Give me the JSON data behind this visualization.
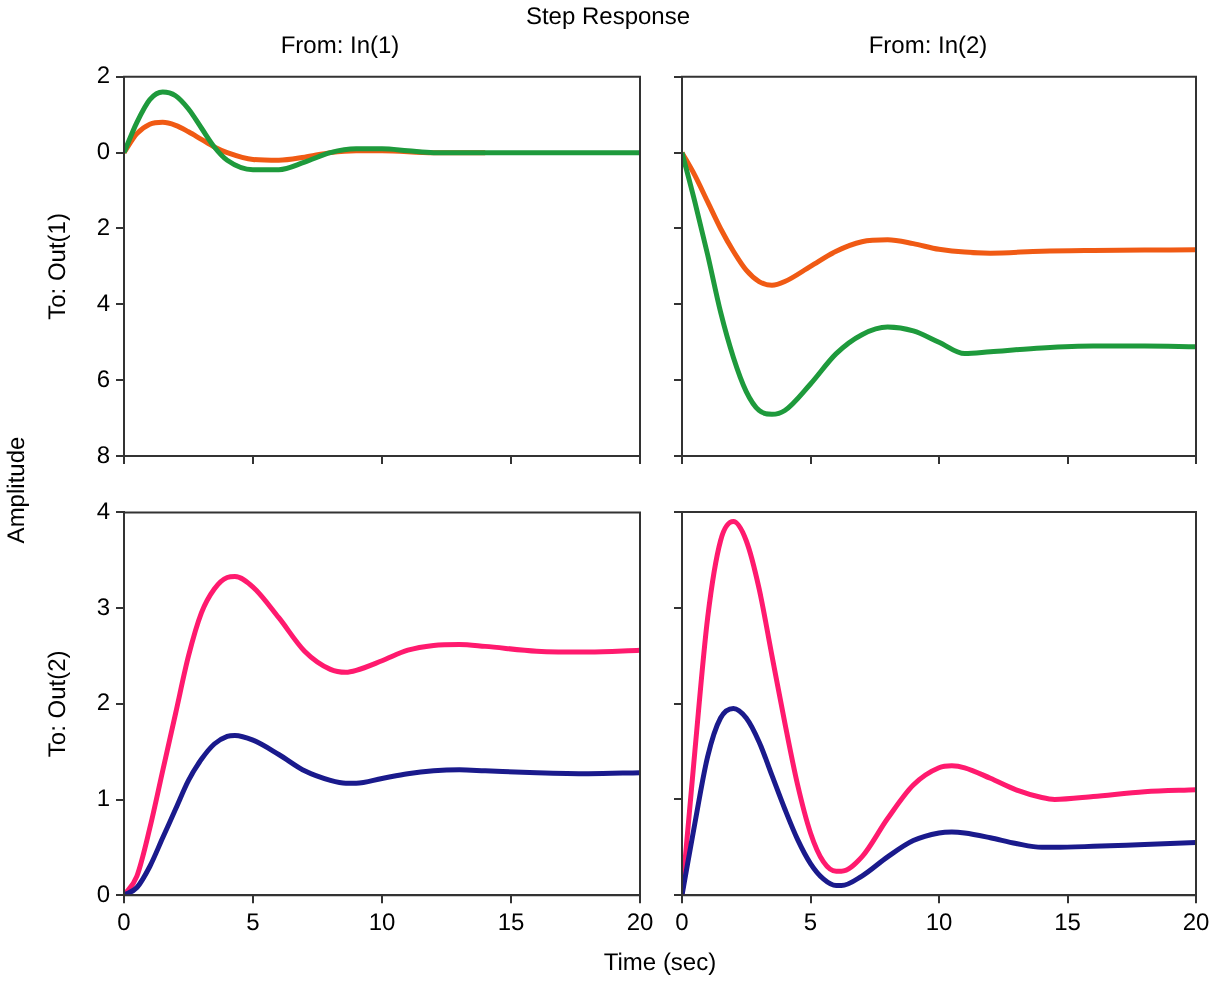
{
  "chart_data": [
    {
      "type": "line",
      "title": "From: In(1)",
      "ylabel": "To: Out(1)",
      "annotations": [
        "Step Response",
        "Amplitude",
        "Time (sec)"
      ],
      "tick_labels": "y",
      "xlim": [
        0,
        20
      ],
      "xticks": [
        {
          "value": 0,
          "label": null
        },
        {
          "value": 5,
          "label": null
        },
        {
          "value": 10,
          "label": null
        },
        {
          "value": 15,
          "label": null
        },
        {
          "value": 20,
          "label": null
        }
      ],
      "ylim": [
        -8,
        2
      ],
      "yticks": [
        {
          "value": -8,
          "label": "8"
        },
        {
          "value": -6,
          "label": "6"
        },
        {
          "value": -4,
          "label": "4"
        },
        {
          "value": -2,
          "label": "2"
        },
        0,
        2
      ],
      "series": [
        {
          "color": "#f05a14",
          "x": [
            0,
            0.5,
            1,
            1.5,
            2,
            2.5,
            3,
            3.5,
            4,
            5,
            6,
            7,
            8,
            9,
            10,
            12,
            14
          ],
          "values": [
            0,
            0.5,
            0.75,
            0.8,
            0.72,
            0.55,
            0.35,
            0.15,
            0,
            -0.18,
            -0.2,
            -0.12,
            0,
            0.05,
            0.05,
            0,
            0
          ]
        },
        {
          "color": "#1e9a3c",
          "x": [
            0,
            0.5,
            1,
            1.5,
            2,
            2.5,
            3,
            3.5,
            4,
            5,
            6,
            7,
            8,
            9,
            10,
            11,
            12,
            14,
            16,
            18,
            20
          ],
          "values": [
            0,
            0.8,
            1.4,
            1.6,
            1.5,
            1.15,
            0.65,
            0.15,
            -0.2,
            -0.45,
            -0.45,
            -0.25,
            0,
            0.1,
            0.1,
            0.05,
            0,
            0,
            0,
            0,
            0
          ]
        }
      ]
    },
    {
      "type": "line",
      "title": "From: In(2)",
      "tick_labels": false,
      "xlim": [
        0,
        20
      ],
      "xticks": [
        {
          "value": 0,
          "label": null
        },
        {
          "value": 5,
          "label": null
        },
        {
          "value": 10,
          "label": null
        },
        {
          "value": 15,
          "label": null
        },
        {
          "value": 20,
          "label": null
        }
      ],
      "ylim": [
        -8,
        2
      ],
      "yticks": [
        {
          "value": -8,
          "label": null
        },
        {
          "value": -6,
          "label": null
        },
        {
          "value": -4,
          "label": null
        },
        {
          "value": -2,
          "label": null
        },
        {
          "value": 0,
          "label": null
        },
        {
          "value": 2,
          "label": null
        }
      ],
      "series": [
        {
          "color": "#f05a14",
          "x": [
            0,
            0.5,
            1,
            1.5,
            2,
            2.5,
            3,
            3.5,
            4,
            5,
            6,
            7,
            8,
            9,
            10,
            12,
            14,
            16,
            18,
            20
          ],
          "values": [
            0,
            -0.6,
            -1.3,
            -2,
            -2.6,
            -3.1,
            -3.4,
            -3.5,
            -3.4,
            -3,
            -2.6,
            -2.35,
            -2.3,
            -2.4,
            -2.55,
            -2.65,
            -2.6,
            -2.58,
            -2.57,
            -2.56
          ]
        },
        {
          "color": "#1e9a3c",
          "x": [
            0,
            0.5,
            1,
            1.5,
            2,
            2.5,
            3,
            3.5,
            4,
            5,
            6,
            7,
            8,
            9,
            10,
            11,
            12,
            14,
            16,
            18,
            20
          ],
          "values": [
            0,
            -1.3,
            -2.7,
            -4.2,
            -5.4,
            -6.3,
            -6.8,
            -6.9,
            -6.8,
            -6.1,
            -5.3,
            -4.8,
            -4.6,
            -4.7,
            -5,
            -5.3,
            -5.25,
            -5.15,
            -5.1,
            -5.1,
            -5.12
          ]
        }
      ]
    },
    {
      "type": "line",
      "ylabel": "To: Out(2)",
      "xlim": [
        0,
        20
      ],
      "xticks": [
        0,
        5,
        10,
        15,
        20
      ],
      "ylim": [
        0,
        4
      ],
      "yticks": [
        0,
        1,
        2,
        3,
        4
      ],
      "series": [
        {
          "color": "#ff1a6e",
          "x": [
            0,
            0.5,
            1,
            1.5,
            2,
            2.5,
            3,
            3.5,
            4,
            4.3,
            5,
            6,
            7,
            8,
            8.6,
            9,
            10,
            11,
            12,
            13,
            14,
            16,
            18,
            20
          ],
          "values": [
            0,
            0.2,
            0.7,
            1.3,
            1.9,
            2.5,
            2.95,
            3.2,
            3.32,
            3.33,
            3.22,
            2.9,
            2.55,
            2.36,
            2.33,
            2.35,
            2.45,
            2.56,
            2.61,
            2.62,
            2.6,
            2.55,
            2.54,
            2.56
          ]
        },
        {
          "color": "#1a1a8c",
          "x": [
            0,
            0.5,
            1,
            1.5,
            2,
            2.5,
            3,
            3.5,
            4,
            4.3,
            5,
            6,
            7,
            8,
            8.6,
            9,
            10,
            11,
            12,
            13,
            14,
            16,
            18,
            20
          ],
          "values": [
            0,
            0.08,
            0.3,
            0.6,
            0.9,
            1.2,
            1.42,
            1.58,
            1.66,
            1.67,
            1.62,
            1.47,
            1.3,
            1.2,
            1.17,
            1.17,
            1.22,
            1.27,
            1.3,
            1.31,
            1.3,
            1.28,
            1.27,
            1.28
          ]
        }
      ]
    },
    {
      "type": "line",
      "tick_labels": "x",
      "xlim": [
        0,
        20
      ],
      "xticks": [
        0,
        5,
        10,
        15,
        20
      ],
      "ylim": [
        0,
        4
      ],
      "yticks": [
        {
          "value": 0,
          "label": null
        },
        {
          "value": 1,
          "label": null
        },
        {
          "value": 2,
          "label": null
        },
        {
          "value": 3,
          "label": null
        },
        {
          "value": 4,
          "label": null
        }
      ],
      "series": [
        {
          "color": "#ff1a6e",
          "x": [
            0,
            0.5,
            1,
            1.5,
            2,
            2.5,
            3,
            3.5,
            4,
            4.5,
            5,
            5.5,
            6,
            6.2,
            7,
            8,
            9,
            10,
            10.5,
            11,
            12,
            13,
            14,
            14.5,
            16,
            18,
            20
          ],
          "values": [
            0,
            1.5,
            2.9,
            3.7,
            3.9,
            3.7,
            3.2,
            2.5,
            1.8,
            1.15,
            0.65,
            0.35,
            0.25,
            0.25,
            0.4,
            0.8,
            1.15,
            1.33,
            1.35,
            1.33,
            1.22,
            1.1,
            1.02,
            1,
            1.03,
            1.08,
            1.1
          ]
        },
        {
          "color": "#1a1a8c",
          "x": [
            0,
            0.5,
            1,
            1.5,
            2,
            2.5,
            3,
            3.5,
            4,
            4.5,
            5,
            5.5,
            6,
            6.2,
            7,
            8,
            9,
            10,
            10.5,
            11,
            12,
            13,
            14,
            14.5,
            16,
            18,
            20
          ],
          "values": [
            0,
            0.75,
            1.45,
            1.85,
            1.95,
            1.85,
            1.6,
            1.25,
            0.9,
            0.58,
            0.33,
            0.17,
            0.1,
            0.1,
            0.2,
            0.4,
            0.57,
            0.65,
            0.66,
            0.65,
            0.6,
            0.54,
            0.5,
            0.5,
            0.51,
            0.53,
            0.55
          ]
        }
      ]
    }
  ]
}
